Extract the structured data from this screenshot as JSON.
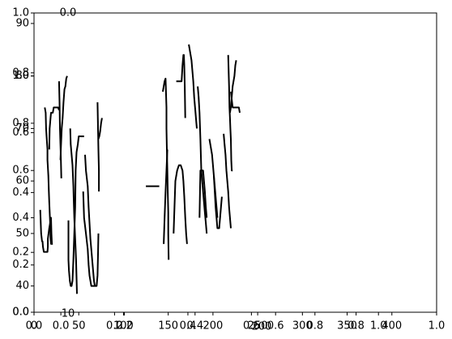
{
  "chart_data": {
    "type": "line",
    "title": "",
    "notes": "Several overlapping matplotlib axes sharing one plot area; each axis set has its own ticks.",
    "axes_ticks": {
      "outer_x": [
        "0.0",
        "0.2",
        "0.4",
        "0.6",
        "0.8",
        "1.0"
      ],
      "outer_y": [
        "0.0",
        "0.2",
        "0.4",
        "0.6",
        "0.8",
        "1.0"
      ],
      "inner_y": [
        "0.0",
        "0.2",
        "0.4",
        "0.6",
        "0.8",
        "1.0"
      ],
      "inner_x": [
        "0.0",
        "0.2",
        "0.4",
        "0.6",
        "0.8",
        "1.0"
      ],
      "primary_x": [
        "0",
        "50",
        "100",
        "150",
        "200",
        "250",
        "300",
        "350",
        "400"
      ],
      "primary_y": [
        "40",
        "50",
        "60",
        "70",
        "80",
        "90"
      ],
      "stray": [
        "10",
        "0.0",
        "200"
      ],
      "zero_label": "0.0"
    },
    "xlim": [
      0,
      450
    ],
    "ylim": [
      35,
      92
    ],
    "series": [
      {
        "values": [
          [
            7,
            54.5
          ],
          [
            8,
            50
          ],
          [
            9,
            48.5
          ],
          [
            9.5,
            48.5
          ],
          [
            10,
            47.5
          ],
          [
            11,
            46.5
          ],
          [
            12.5,
            46.5
          ],
          [
            14,
            46.5
          ],
          [
            15,
            46.5
          ],
          [
            15.5,
            47.5
          ],
          [
            15.5,
            49
          ],
          [
            17,
            51
          ],
          [
            19,
            53
          ],
          [
            19.5,
            50
          ],
          [
            20,
            48
          ],
          [
            21,
            48
          ]
        ]
      },
      {
        "values": [
          [
            12,
            74
          ],
          [
            13,
            73
          ],
          [
            13.5,
            70
          ],
          [
            14,
            68.5
          ],
          [
            15,
            66
          ],
          [
            15,
            64
          ],
          [
            16,
            61
          ],
          [
            16.5,
            58.5
          ],
          [
            17,
            56
          ],
          [
            18,
            52
          ],
          [
            18.5,
            49
          ],
          [
            19,
            48
          ],
          [
            19.5,
            48
          ]
        ]
      },
      {
        "values": [
          [
            17,
            66
          ],
          [
            17.5,
            70
          ],
          [
            18.5,
            72
          ],
          [
            19,
            73
          ],
          [
            21,
            73
          ],
          [
            22,
            74
          ],
          [
            25,
            74
          ],
          [
            27,
            74
          ],
          [
            28,
            73.5
          ]
        ]
      },
      {
        "values": [
          [
            28,
            79
          ],
          [
            28.5,
            75
          ],
          [
            29,
            70
          ],
          [
            29.5,
            67
          ],
          [
            30,
            64.5
          ],
          [
            30.5,
            60.5
          ]
        ]
      },
      {
        "values": [
          [
            29.5,
            64
          ],
          [
            30,
            66
          ],
          [
            31,
            70
          ],
          [
            32,
            72
          ],
          [
            33,
            75
          ],
          [
            34,
            77.5
          ],
          [
            35,
            78
          ],
          [
            36,
            79.5
          ],
          [
            37,
            80
          ]
        ]
      },
      {
        "values": [
          [
            40.5,
            70
          ],
          [
            41,
            67
          ],
          [
            43,
            63
          ],
          [
            44,
            59
          ],
          [
            44.5,
            56
          ],
          [
            45,
            53
          ],
          [
            46,
            49
          ],
          [
            47,
            45
          ],
          [
            47.5,
            41.5
          ],
          [
            48,
            38.5
          ]
        ]
      },
      {
        "values": [
          [
            38.5,
            52.5
          ],
          [
            38.5,
            45
          ],
          [
            39,
            43
          ],
          [
            40,
            41
          ],
          [
            41,
            40
          ],
          [
            42,
            40
          ],
          [
            43,
            41
          ],
          [
            44,
            45
          ],
          [
            45,
            50
          ],
          [
            46,
            55
          ],
          [
            46.5,
            62
          ],
          [
            47.5,
            65.5
          ],
          [
            49,
            67
          ],
          [
            50,
            68.5
          ],
          [
            53,
            68.5
          ],
          [
            56,
            68.5
          ]
        ]
      },
      {
        "values": [
          [
            55,
            58
          ],
          [
            56,
            53
          ],
          [
            58,
            50
          ],
          [
            60,
            47
          ],
          [
            61,
            44
          ],
          [
            62,
            42
          ],
          [
            64,
            40
          ],
          [
            67,
            40
          ],
          [
            70,
            40
          ],
          [
            71,
            42
          ],
          [
            71.5,
            46
          ],
          [
            72,
            50
          ]
        ]
      },
      {
        "values": [
          [
            57,
            65
          ],
          [
            58,
            62
          ],
          [
            60,
            59
          ],
          [
            61,
            55
          ],
          [
            62,
            52
          ],
          [
            63,
            49
          ],
          [
            64,
            47
          ],
          [
            65,
            45
          ],
          [
            66,
            43
          ],
          [
            67,
            41
          ],
          [
            68,
            40
          ]
        ]
      },
      {
        "values": [
          [
            71,
            75
          ],
          [
            71.5,
            70
          ],
          [
            72,
            66
          ],
          [
            72.5,
            62
          ],
          [
            72.5,
            58
          ]
        ]
      },
      {
        "values": [
          [
            72,
            68
          ],
          [
            73,
            68.5
          ],
          [
            74,
            69.5
          ],
          [
            75,
            71
          ],
          [
            76,
            72
          ]
        ]
      },
      {
        "values": [
          [
            144,
            77
          ],
          [
            145,
            78
          ],
          [
            146,
            79
          ],
          [
            147,
            79.5
          ],
          [
            147.5,
            77
          ],
          [
            148,
            74
          ],
          [
            148,
            70
          ],
          [
            148.5,
            66
          ],
          [
            149,
            62
          ],
          [
            149.5,
            58
          ],
          [
            150,
            54
          ],
          [
            150,
            50
          ],
          [
            150.5,
            45
          ]
        ]
      },
      {
        "values": [
          [
            145,
            48
          ],
          [
            146,
            53
          ],
          [
            147,
            58
          ],
          [
            148,
            62
          ],
          [
            149,
            66
          ]
        ]
      },
      {
        "values": [
          [
            125,
            59
          ],
          [
            140,
            59
          ]
        ]
      },
      {
        "values": [
          [
            159,
            79
          ],
          [
            165,
            79
          ],
          [
            166,
            82
          ],
          [
            167,
            84
          ],
          [
            167.5,
            84
          ],
          [
            168,
            82
          ],
          [
            168.5,
            78
          ],
          [
            169,
            72
          ]
        ]
      },
      {
        "values": [
          [
            156,
            50
          ],
          [
            157,
            55
          ],
          [
            158,
            60
          ],
          [
            160,
            62
          ],
          [
            162,
            63
          ],
          [
            164,
            63
          ],
          [
            166,
            62
          ],
          [
            167,
            60
          ],
          [
            168,
            57
          ],
          [
            169,
            53
          ],
          [
            170,
            50
          ],
          [
            171,
            48
          ]
        ]
      },
      {
        "values": [
          [
            173,
            86
          ],
          [
            174,
            85
          ],
          [
            175,
            84
          ],
          [
            176,
            83
          ],
          [
            177,
            81
          ],
          [
            178,
            79
          ],
          [
            179,
            76
          ],
          [
            180,
            74
          ],
          [
            181,
            72
          ],
          [
            182,
            70
          ]
        ]
      },
      {
        "values": [
          [
            183,
            78
          ],
          [
            184,
            76
          ],
          [
            185,
            73
          ],
          [
            186,
            68
          ],
          [
            187,
            62
          ],
          [
            188,
            60
          ],
          [
            189,
            58
          ],
          [
            190,
            56
          ],
          [
            191,
            54
          ],
          [
            192,
            52
          ],
          [
            193,
            50
          ]
        ]
      },
      {
        "values": [
          [
            185,
            53
          ],
          [
            185.5,
            58
          ],
          [
            186,
            62
          ],
          [
            188,
            62
          ],
          [
            189,
            62
          ],
          [
            190,
            60
          ],
          [
            191,
            58
          ],
          [
            192,
            55
          ],
          [
            193,
            53
          ]
        ]
      },
      {
        "values": [
          [
            196,
            68
          ],
          [
            197,
            67
          ],
          [
            198,
            66
          ],
          [
            199,
            65
          ],
          [
            200,
            63
          ],
          [
            201,
            61
          ],
          [
            202,
            59
          ],
          [
            203,
            57
          ],
          [
            204,
            55
          ],
          [
            205,
            53
          ]
        ]
      },
      {
        "values": [
          [
            201,
            61
          ],
          [
            202,
            58
          ],
          [
            203,
            55
          ],
          [
            204,
            53
          ],
          [
            205,
            51
          ],
          [
            206,
            51
          ],
          [
            207,
            51
          ],
          [
            208,
            53
          ],
          [
            209,
            55
          ],
          [
            210,
            57
          ]
        ]
      },
      {
        "values": [
          [
            217,
            84
          ],
          [
            218,
            78
          ],
          [
            218.5,
            74
          ],
          [
            219,
            72
          ],
          [
            219.5,
            70
          ],
          [
            220,
            68
          ],
          [
            220.5,
            64
          ],
          [
            221,
            62
          ],
          [
            222,
            62
          ]
        ]
      },
      {
        "values": [
          [
            219,
            73
          ],
          [
            220,
            74
          ],
          [
            221,
            76
          ],
          [
            222,
            78
          ],
          [
            224,
            80
          ],
          [
            225,
            82
          ],
          [
            226,
            83
          ]
        ]
      },
      {
        "values": [
          [
            220,
            77
          ],
          [
            222,
            74
          ],
          [
            224,
            74
          ],
          [
            227,
            74
          ],
          [
            229,
            74
          ],
          [
            230,
            73
          ]
        ]
      },
      {
        "values": [
          [
            212,
            69
          ],
          [
            213,
            67
          ],
          [
            214,
            65
          ],
          [
            215,
            62
          ],
          [
            216,
            60
          ],
          [
            217,
            58
          ],
          [
            218,
            55
          ],
          [
            219,
            53
          ],
          [
            220,
            51
          ]
        ]
      }
    ]
  }
}
